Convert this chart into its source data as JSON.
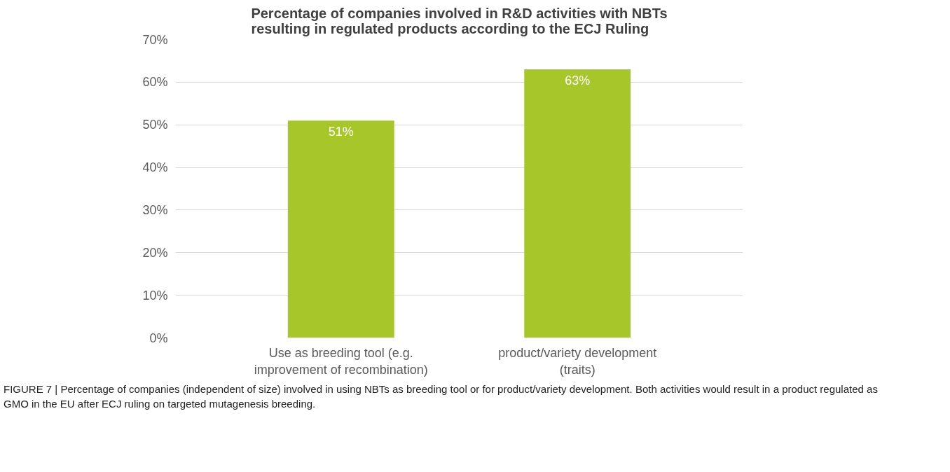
{
  "chart_data": {
    "type": "bar",
    "title": "Percentage of companies involved in R&D activities with NBTs resulting in regulated products according to the ECJ Ruling",
    "categories": [
      "Use as breeding tool (e.g. improvement of recombination)",
      "product/variety development (traits)"
    ],
    "values": [
      51,
      63
    ],
    "color": "#a6c62a",
    "value_labels": [
      "51%",
      "63%"
    ],
    "ylim": [
      0,
      70
    ],
    "yticks": [
      {
        "value": 0,
        "label": "0%"
      },
      {
        "value": 10,
        "label": "10%"
      },
      {
        "value": 20,
        "label": "20%"
      },
      {
        "value": 30,
        "label": "30%"
      },
      {
        "value": 40,
        "label": "40%"
      },
      {
        "value": 50,
        "label": "50%"
      },
      {
        "value": 60,
        "label": "60%"
      },
      {
        "value": 70,
        "label": "70%"
      }
    ],
    "grid": "y",
    "annotations": [
      "FIGURE 7 | Percentage of companies (independent of size) involved in using NBTs as breeding tool or for product/variety development. Both activities would result in a product regulated as GMO in the EU after ECJ ruling on targeted mutagenesis breeding."
    ]
  }
}
